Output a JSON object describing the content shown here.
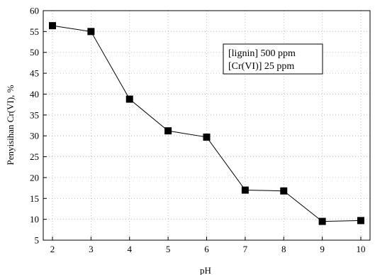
{
  "chart_data": {
    "type": "line",
    "title": "",
    "xlabel": "pH",
    "ylabel": "Penyisihan Cr(VI), %",
    "xlim": [
      2,
      10
    ],
    "ylim": [
      5,
      60
    ],
    "xticks": [
      2,
      3,
      4,
      5,
      6,
      7,
      8,
      9,
      10
    ],
    "yticks": [
      5,
      10,
      15,
      20,
      25,
      30,
      35,
      40,
      45,
      50,
      55,
      60
    ],
    "grid": true,
    "legend_position": "top-right",
    "legend_lines": [
      "[lignin] 500 ppm",
      "[Cr(VI)] 25 ppm"
    ],
    "series": [
      {
        "marker": "square",
        "color": "#000000",
        "x": [
          2,
          3,
          4,
          5,
          6,
          7,
          8,
          9,
          10
        ],
        "y": [
          56.4,
          55.0,
          38.8,
          31.2,
          29.7,
          17.0,
          16.8,
          9.5,
          9.7
        ]
      }
    ]
  }
}
